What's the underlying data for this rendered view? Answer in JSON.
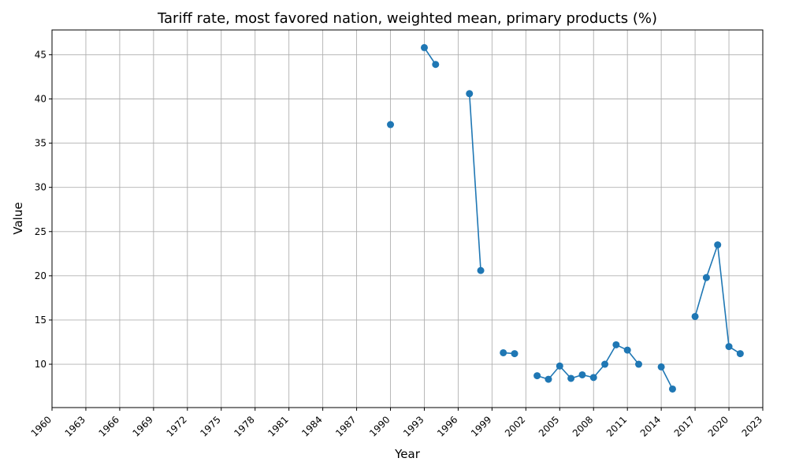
{
  "chart_data": {
    "type": "line",
    "title": "Tariff rate, most favored nation, weighted mean, primary products (%)",
    "xlabel": "Year",
    "ylabel": "Value",
    "xlim": [
      1960,
      2023
    ],
    "ylim": [
      5.1,
      47.8
    ],
    "xticks": [
      "1960",
      "1963",
      "1966",
      "1969",
      "1972",
      "1975",
      "1978",
      "1981",
      "1984",
      "1987",
      "1990",
      "1993",
      "1996",
      "1999",
      "2002",
      "2005",
      "2008",
      "2011",
      "2014",
      "2017",
      "2020",
      "2023"
    ],
    "yticks": [
      "10",
      "15",
      "20",
      "25",
      "30",
      "35",
      "40",
      "45"
    ],
    "grid": true,
    "color": "#1f77b4",
    "series": [
      {
        "x": [
          1990,
          1993,
          1994,
          1997,
          1998,
          2000,
          2001,
          2003,
          2004,
          2005,
          2006,
          2007,
          2008,
          2009,
          2010,
          2011,
          2012,
          2014,
          2015,
          2017,
          2018,
          2019,
          2020,
          2021
        ],
        "values": [
          37.1,
          45.8,
          43.9,
          40.6,
          20.6,
          11.3,
          11.2,
          8.7,
          8.3,
          9.8,
          8.4,
          8.8,
          8.5,
          10.0,
          12.2,
          11.6,
          10.0,
          9.7,
          7.2,
          15.4,
          19.8,
          23.5,
          12.0,
          11.2
        ]
      }
    ]
  }
}
